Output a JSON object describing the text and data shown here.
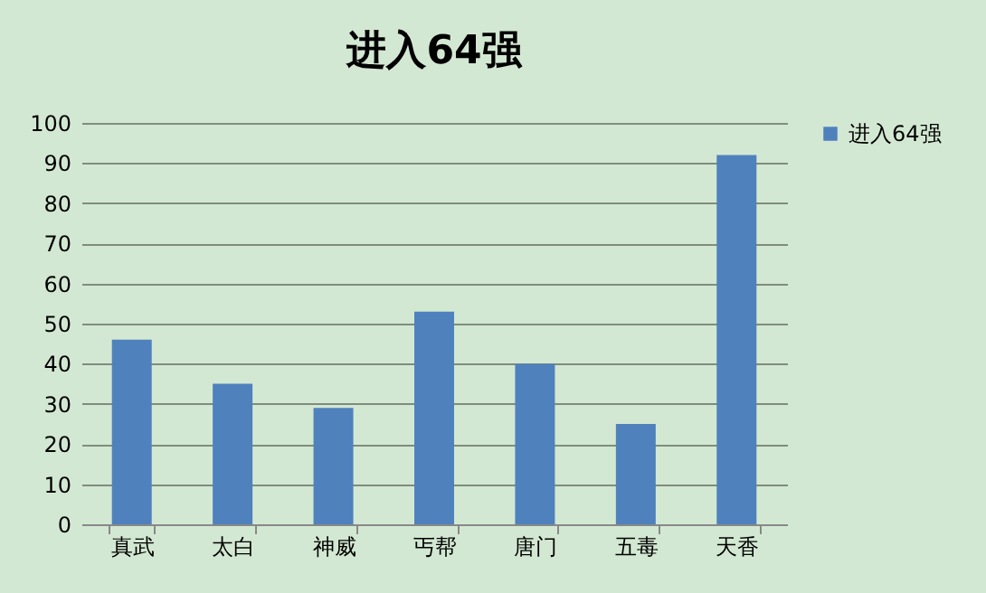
{
  "chart_data": {
    "type": "bar",
    "title": "进入64强",
    "categories": [
      "真武",
      "太白",
      "神威",
      "丐帮",
      "唐门",
      "五毒",
      "天香"
    ],
    "series": [
      {
        "name": "进入64强",
        "color": "#4f81bd",
        "values": [
          46,
          35,
          29,
          53,
          40,
          25,
          92
        ]
      }
    ],
    "ylim": [
      0,
      100
    ],
    "yticks": [
      0,
      10,
      20,
      30,
      40,
      50,
      60,
      70,
      80,
      90,
      100
    ],
    "grid": "y",
    "legend": "right"
  }
}
